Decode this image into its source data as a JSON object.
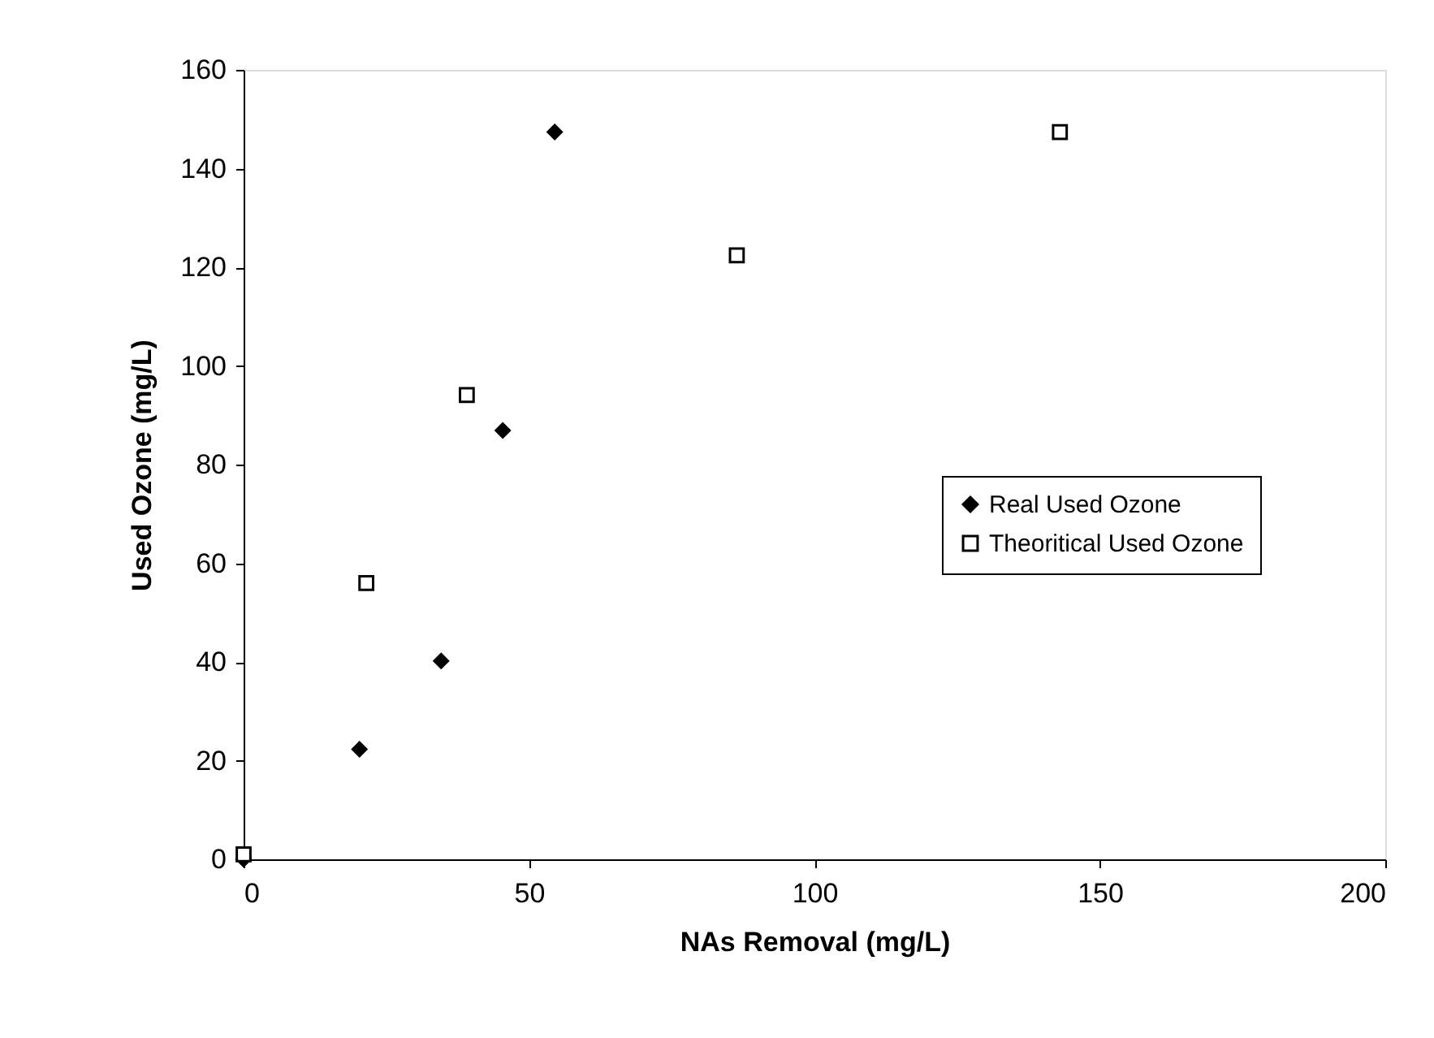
{
  "chart_data": {
    "type": "scatter",
    "xlabel": "NAs Removal (mg/L)",
    "ylabel": "Used Ozone (mg/L)",
    "xlim": [
      0,
      200
    ],
    "xticks": [
      0,
      50,
      100,
      150,
      200
    ],
    "ylim": [
      0,
      160
    ],
    "yticks": [
      0,
      20,
      40,
      60,
      80,
      100,
      120,
      140,
      160
    ],
    "grid": false,
    "legend": "right",
    "series": [
      {
        "name": "Real Used Ozone",
        "color": "#000000",
        "marker": "diamond",
        "x": [
          0,
          20.3,
          34.6,
          45.4,
          54.5
        ],
        "values": [
          0,
          22.3,
          40.2,
          86.9,
          147.4
        ]
      },
      {
        "name": "Theoritical Used Ozone",
        "color": "#000000",
        "marker": "square",
        "x": [
          0,
          21.5,
          39.1,
          86.4,
          143
        ],
        "values": [
          1,
          56,
          94.1,
          122.4,
          147.4
        ]
      }
    ]
  }
}
